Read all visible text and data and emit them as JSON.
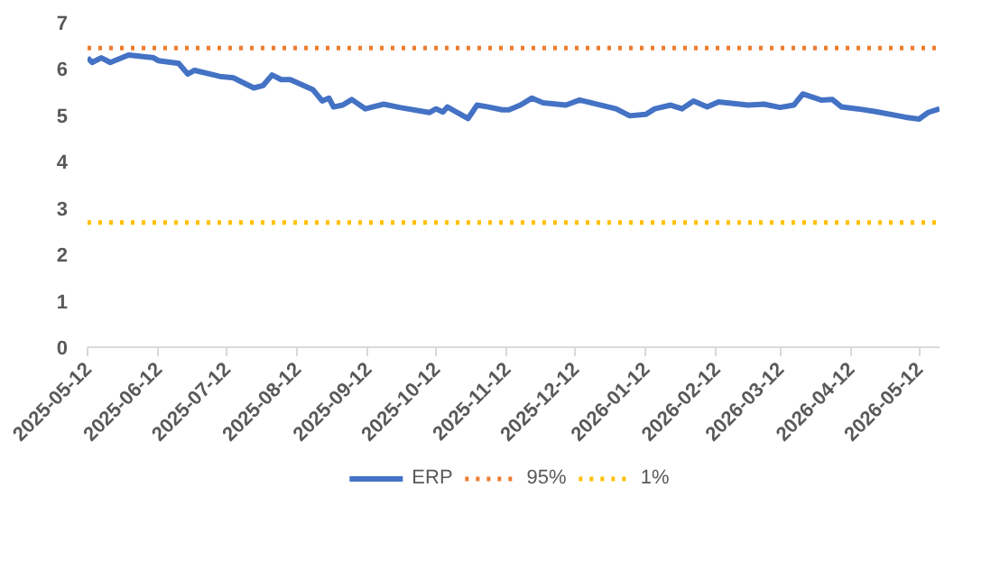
{
  "chart_data": {
    "type": "line",
    "xlim": [
      "2025-05-12",
      "2026-05-21"
    ],
    "ylim": [
      0,
      7
    ],
    "yticks": [
      0,
      1,
      2,
      3,
      4,
      5,
      6,
      7
    ],
    "xticks": [
      "2025-05-12",
      "2025-06-12",
      "2025-07-12",
      "2025-08-12",
      "2025-09-12",
      "2025-10-12",
      "2025-11-12",
      "2025-12-12",
      "2026-01-12",
      "2026-02-12",
      "2026-03-12",
      "2026-04-12",
      "2026-05-12"
    ],
    "grid": false,
    "legend": "bottom",
    "marker": "none",
    "series": [
      {
        "name": "ERP",
        "color": "#4472c4",
        "line_style": "solid",
        "x": [
          "2025-05-12",
          "2025-05-14",
          "2025-05-18",
          "2025-05-22",
          "2025-05-30",
          "2025-06-10",
          "2025-06-12",
          "2025-06-21",
          "2025-06-25",
          "2025-06-28",
          "2025-07-09",
          "2025-07-15",
          "2025-07-24",
          "2025-07-28",
          "2025-08-01",
          "2025-08-05",
          "2025-08-09",
          "2025-08-19",
          "2025-08-23",
          "2025-08-26",
          "2025-08-28",
          "2025-09-01",
          "2025-09-05",
          "2025-09-11",
          "2025-09-19",
          "2025-09-26",
          "2025-10-09",
          "2025-10-12",
          "2025-10-15",
          "2025-10-17",
          "2025-10-26",
          "2025-10-30",
          "2025-11-04",
          "2025-11-10",
          "2025-11-13",
          "2025-11-18",
          "2025-11-23",
          "2025-11-28",
          "2025-12-08",
          "2025-12-14",
          "2025-12-30",
          "2026-01-05",
          "2026-01-12",
          "2026-01-16",
          "2026-01-23",
          "2026-01-28",
          "2026-02-02",
          "2026-02-08",
          "2026-02-13",
          "2026-02-26",
          "2026-03-05",
          "2026-03-12",
          "2026-03-18",
          "2026-03-22",
          "2026-03-30",
          "2026-04-04",
          "2026-04-08",
          "2026-04-15",
          "2026-04-23",
          "2026-05-06",
          "2026-05-12",
          "2026-05-16",
          "2026-05-21"
        ],
        "values": [
          6.24,
          6.14,
          6.24,
          6.14,
          6.3,
          6.24,
          6.18,
          6.12,
          5.89,
          5.97,
          5.84,
          5.81,
          5.59,
          5.64,
          5.87,
          5.77,
          5.77,
          5.55,
          5.31,
          5.37,
          5.18,
          5.22,
          5.34,
          5.14,
          5.24,
          5.17,
          5.06,
          5.14,
          5.07,
          5.18,
          4.93,
          5.22,
          5.18,
          5.12,
          5.12,
          5.22,
          5.37,
          5.27,
          5.22,
          5.33,
          5.14,
          4.99,
          5.02,
          5.14,
          5.22,
          5.14,
          5.31,
          5.18,
          5.29,
          5.22,
          5.24,
          5.17,
          5.22,
          5.46,
          5.33,
          5.34,
          5.18,
          5.14,
          5.08,
          4.96,
          4.92,
          5.06,
          5.14
        ]
      },
      {
        "name": "95%",
        "color": "#ed7d31",
        "line_style": "dotted",
        "x": [
          "2025-05-12",
          "2026-05-21"
        ],
        "values": [
          6.45,
          6.45
        ]
      },
      {
        "name": "1%",
        "color": "#ffc000",
        "line_style": "dotted",
        "x": [
          "2025-05-12",
          "2026-05-21"
        ],
        "values": [
          2.69,
          2.69
        ]
      }
    ]
  }
}
